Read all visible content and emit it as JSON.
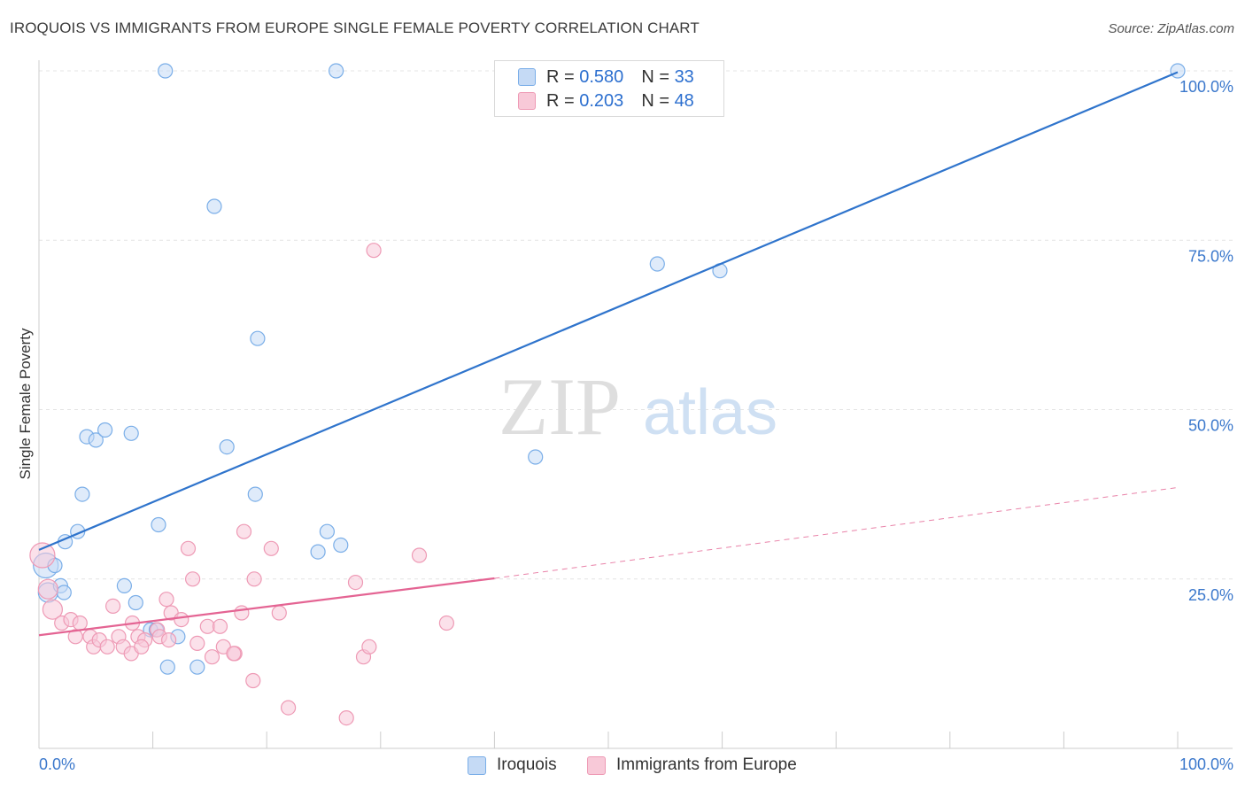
{
  "title": "IROQUOIS VS IMMIGRANTS FROM EUROPE SINGLE FEMALE POVERTY CORRELATION CHART",
  "source": "Source: ZipAtlas.com",
  "watermark": {
    "zip": "ZIP",
    "atlas": "atlas"
  },
  "legend": {
    "rows": [
      {
        "r_label": "R =",
        "r_value": "0.580",
        "n_label": "N =",
        "n_value": "33"
      },
      {
        "r_label": "R =",
        "r_value": "0.203",
        "n_label": "N =",
        "n_value": "48"
      }
    ]
  },
  "chart_data": {
    "type": "scatter",
    "title": "IROQUOIS VS IMMIGRANTS FROM EUROPE SINGLE FEMALE POVERTY CORRELATION CHART",
    "xlabel": "",
    "ylabel": "Single Female Poverty",
    "xlim": [
      0,
      100
    ],
    "ylim": [
      0,
      100
    ],
    "x_tick_labels": [
      "0.0%",
      "100.0%"
    ],
    "y_tick_labels": [
      "25.0%",
      "50.0%",
      "75.0%",
      "100.0%"
    ],
    "y_ticks": [
      25,
      50,
      75,
      100
    ],
    "grid": true,
    "legend_position": "top-center and bottom",
    "series": [
      {
        "name": "Iroquois",
        "color": "#7aaee8",
        "fill": "#c5daf5",
        "line_color": "#2f74cc",
        "points": [
          [
            0.6,
            27.0
          ],
          [
            0.8,
            23.0
          ],
          [
            1.4,
            27.0
          ],
          [
            1.9,
            24.0
          ],
          [
            2.2,
            23.0
          ],
          [
            2.3,
            30.5
          ],
          [
            3.4,
            32.0
          ],
          [
            3.8,
            37.5
          ],
          [
            4.2,
            46.0
          ],
          [
            5.0,
            45.5
          ],
          [
            5.8,
            47.0
          ],
          [
            7.5,
            24.0
          ],
          [
            8.1,
            46.5
          ],
          [
            8.5,
            21.5
          ],
          [
            9.8,
            17.5
          ],
          [
            10.3,
            17.5
          ],
          [
            10.5,
            33.0
          ],
          [
            11.3,
            12.0
          ],
          [
            11.1,
            100.0
          ],
          [
            12.2,
            16.5
          ],
          [
            13.9,
            12.0
          ],
          [
            15.4,
            80.0
          ],
          [
            16.5,
            44.5
          ],
          [
            19.2,
            60.5
          ],
          [
            19.0,
            37.5
          ],
          [
            24.5,
            29.0
          ],
          [
            25.3,
            32.0
          ],
          [
            26.1,
            100.0
          ],
          [
            26.5,
            30.0
          ],
          [
            43.6,
            43.0
          ],
          [
            54.3,
            71.5
          ],
          [
            59.8,
            70.5
          ],
          [
            100.0,
            100.0
          ]
        ],
        "trend": {
          "x": [
            0,
            100
          ],
          "y": [
            29.3,
            99.8
          ],
          "style": "solid"
        }
      },
      {
        "name": "Immigrants from Europe",
        "color": "#ee9ab5",
        "fill": "#f8c9d8",
        "line_color": "#e46493",
        "points": [
          [
            0.3,
            28.5
          ],
          [
            0.8,
            23.5
          ],
          [
            1.2,
            20.5
          ],
          [
            2.0,
            18.5
          ],
          [
            2.8,
            19.0
          ],
          [
            3.2,
            16.5
          ],
          [
            3.6,
            18.5
          ],
          [
            4.5,
            16.5
          ],
          [
            4.8,
            15.0
          ],
          [
            5.3,
            16.0
          ],
          [
            6.5,
            21.0
          ],
          [
            6.0,
            15.0
          ],
          [
            7.0,
            16.5
          ],
          [
            7.4,
            15.0
          ],
          [
            8.1,
            14.0
          ],
          [
            8.7,
            16.5
          ],
          [
            9.3,
            16.0
          ],
          [
            8.2,
            18.5
          ],
          [
            9.0,
            15.0
          ],
          [
            10.4,
            17.5
          ],
          [
            10.6,
            16.5
          ],
          [
            11.2,
            22.0
          ],
          [
            11.4,
            16.0
          ],
          [
            11.6,
            20.0
          ],
          [
            12.5,
            19.0
          ],
          [
            13.1,
            29.5
          ],
          [
            13.9,
            15.5
          ],
          [
            13.5,
            25.0
          ],
          [
            14.8,
            18.0
          ],
          [
            15.2,
            13.5
          ],
          [
            15.9,
            18.0
          ],
          [
            16.2,
            15.0
          ],
          [
            17.2,
            14.0
          ],
          [
            17.1,
            14.0
          ],
          [
            17.8,
            20.0
          ],
          [
            18.0,
            32.0
          ],
          [
            18.8,
            10.0
          ],
          [
            18.9,
            25.0
          ],
          [
            20.4,
            29.5
          ],
          [
            21.1,
            20.0
          ],
          [
            21.9,
            6.0
          ],
          [
            27.0,
            4.5
          ],
          [
            27.8,
            24.5
          ],
          [
            28.5,
            13.5
          ],
          [
            29.0,
            15.0
          ],
          [
            29.4,
            73.5
          ],
          [
            33.4,
            28.5
          ],
          [
            35.8,
            18.5
          ]
        ],
        "trend": {
          "x": [
            0,
            40
          ],
          "y": [
            16.7,
            25.1
          ],
          "style": "solid"
        },
        "trend_extension": {
          "x": [
            40,
            100
          ],
          "y": [
            25.1,
            38.5
          ],
          "style": "dashed"
        }
      }
    ]
  }
}
